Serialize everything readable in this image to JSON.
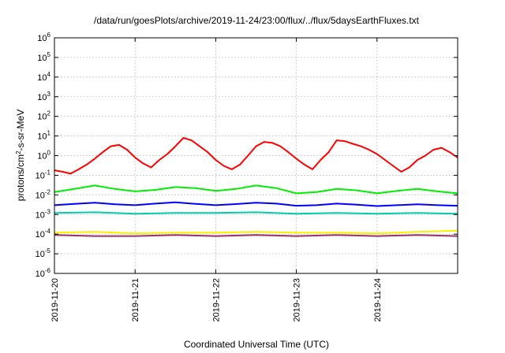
{
  "chart_data": {
    "type": "line",
    "title": "/data/run/goesPlots/archive/2019-11-24/23:00/flux/../flux/5daysEarthFluxes.txt",
    "xlabel": "Coordinated Universal Time (UTC)",
    "ylabel": "protons/cm2-s-sr-MeV",
    "ylabel_parts": {
      "pre": "protons/cm",
      "sup": "2",
      "post": "-s-sr-MeV"
    },
    "yscale": "log",
    "ylim": [
      1e-06,
      1000000.0
    ],
    "yticks": [
      {
        "base": "10",
        "exp": "-6"
      },
      {
        "base": "10",
        "exp": "-5"
      },
      {
        "base": "10",
        "exp": "-4"
      },
      {
        "base": "10",
        "exp": "-3"
      },
      {
        "base": "10",
        "exp": "-2"
      },
      {
        "base": "10",
        "exp": "-1"
      },
      {
        "base": "10",
        "exp": "0"
      },
      {
        "base": "10",
        "exp": "1"
      },
      {
        "base": "10",
        "exp": "2"
      },
      {
        "base": "10",
        "exp": "3"
      },
      {
        "base": "10",
        "exp": "4"
      },
      {
        "base": "10",
        "exp": "5"
      },
      {
        "base": "10",
        "exp": "6"
      }
    ],
    "xlim": [
      "2019-11-20",
      "2019-11-25"
    ],
    "xticks": [
      "2019-11-20",
      "2019-11-21",
      "2019-11-22",
      "2019-11-23",
      "2019-11-24"
    ],
    "grid": true,
    "series": [
      {
        "color": "#ff0000",
        "x": [
          0.0,
          0.1,
          0.2,
          0.3,
          0.4,
          0.5,
          0.6,
          0.7,
          0.8,
          0.9,
          1.0,
          1.1,
          1.2,
          1.3,
          1.4,
          1.5,
          1.6,
          1.7,
          1.8,
          1.9,
          2.0,
          2.1,
          2.2,
          2.3,
          2.4,
          2.5,
          2.6,
          2.7,
          2.8,
          2.9,
          3.0,
          3.1,
          3.2,
          3.3,
          3.4,
          3.5,
          3.6,
          3.7,
          3.8,
          3.9,
          4.0,
          4.1,
          4.2,
          4.3,
          4.4,
          4.5,
          4.6,
          4.7,
          4.8,
          4.9,
          5.0
        ],
        "y": [
          0.18,
          0.15,
          0.12,
          0.2,
          0.35,
          0.7,
          1.5,
          3.0,
          3.5,
          2.0,
          0.8,
          0.4,
          0.25,
          0.6,
          1.2,
          3.0,
          8.0,
          6.0,
          3.0,
          1.5,
          0.6,
          0.3,
          0.2,
          0.35,
          1.0,
          3.0,
          5.0,
          4.5,
          3.0,
          1.5,
          0.7,
          0.35,
          0.2,
          0.6,
          1.5,
          6.0,
          5.5,
          4.0,
          3.0,
          2.0,
          1.2,
          0.6,
          0.3,
          0.15,
          0.25,
          0.6,
          1.0,
          2.0,
          2.5,
          1.5,
          0.8
        ]
      },
      {
        "color": "#00ee00",
        "x": [
          0.0,
          0.25,
          0.5,
          0.75,
          1.0,
          1.25,
          1.5,
          1.75,
          2.0,
          2.25,
          2.5,
          2.75,
          3.0,
          3.25,
          3.5,
          3.75,
          4.0,
          4.25,
          4.5,
          4.75,
          5.0
        ],
        "y": [
          0.014,
          0.02,
          0.03,
          0.02,
          0.015,
          0.018,
          0.025,
          0.022,
          0.016,
          0.02,
          0.03,
          0.022,
          0.012,
          0.014,
          0.02,
          0.017,
          0.012,
          0.016,
          0.02,
          0.015,
          0.012
        ]
      },
      {
        "color": "#0000ff",
        "x": [
          0.0,
          0.25,
          0.5,
          0.75,
          1.0,
          1.25,
          1.5,
          1.75,
          2.0,
          2.25,
          2.5,
          2.75,
          3.0,
          3.25,
          3.5,
          3.75,
          4.0,
          4.25,
          4.5,
          4.75,
          5.0
        ],
        "y": [
          0.003,
          0.0035,
          0.004,
          0.0033,
          0.003,
          0.0036,
          0.0042,
          0.0035,
          0.003,
          0.0034,
          0.004,
          0.0036,
          0.0028,
          0.003,
          0.0036,
          0.0032,
          0.0027,
          0.003,
          0.0033,
          0.003,
          0.0028
        ]
      },
      {
        "color": "#00ccaa",
        "x": [
          0.0,
          0.5,
          1.0,
          1.5,
          2.0,
          2.5,
          3.0,
          3.5,
          4.0,
          4.5,
          5.0
        ],
        "y": [
          0.0012,
          0.0013,
          0.0011,
          0.0012,
          0.0012,
          0.0013,
          0.0011,
          0.0012,
          0.0011,
          0.0012,
          0.0011
        ]
      },
      {
        "color": "#ffee00",
        "x": [
          0.0,
          0.5,
          1.0,
          1.5,
          2.0,
          2.5,
          3.0,
          3.5,
          4.0,
          4.5,
          5.0
        ],
        "y": [
          0.00012,
          0.00013,
          0.00011,
          0.00012,
          0.00012,
          0.00013,
          0.00012,
          0.00012,
          0.00011,
          0.00013,
          0.00015
        ]
      },
      {
        "color": "#993366",
        "x": [
          0.0,
          0.5,
          1.0,
          1.5,
          2.0,
          2.5,
          3.0,
          3.5,
          4.0,
          4.5,
          5.0
        ],
        "y": [
          9e-05,
          8e-05,
          8e-05,
          9e-05,
          8e-05,
          9e-05,
          8e-05,
          9e-05,
          8e-05,
          9e-05,
          8e-05
        ]
      }
    ]
  }
}
